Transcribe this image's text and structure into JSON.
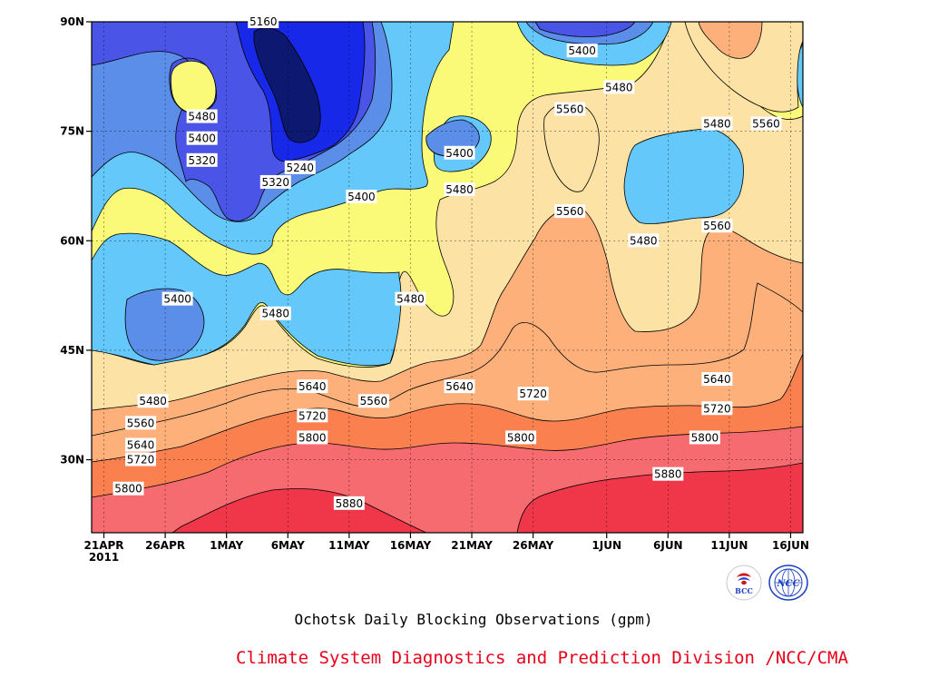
{
  "chart_data": {
    "type": "heatmap",
    "subtype": "filled-contour",
    "title": "Ochotsk Daily Blocking Observations (gpm)",
    "credit": "Climate System Diagnostics and Prediction Division /NCC/CMA",
    "x_tick_labels": [
      "21APR",
      "26APR",
      "1MAY",
      "6MAY",
      "11MAY",
      "16MAY",
      "21MAY",
      "26MAY",
      "1JUN",
      "6JUN",
      "11JUN",
      "16JUN"
    ],
    "x_year_label": "2011",
    "x_range": [
      "2011-04-20",
      "2011-06-17"
    ],
    "y_tick_labels": [
      "30N",
      "45N",
      "60N",
      "75N",
      "90N"
    ],
    "y_range": [
      20,
      90
    ],
    "grid": true,
    "contour_levels": [
      5160,
      5240,
      5320,
      5400,
      5480,
      5560,
      5640,
      5720,
      5800,
      5880
    ],
    "fill_colors": {
      "below_5240": "#0d1870",
      "5240": "#1828e8",
      "5320": "#4a55e8",
      "5400": "#5a8ee8",
      "5480": "#64c8fa",
      "5560": "#fafa78",
      "5640": "#fde2a6",
      "5720": "#fdb07a",
      "5800": "#fb8050",
      "5880": "#f56b70",
      "above_5880": "#f0374a"
    },
    "contour_labels": [
      {
        "text": "5160",
        "date": "2011-05-04",
        "lat": 90
      },
      {
        "text": "5240",
        "date": "2011-05-07",
        "lat": 70
      },
      {
        "text": "5320",
        "date": "2011-05-05",
        "lat": 68
      },
      {
        "text": "5400",
        "date": "2011-05-12",
        "lat": 66
      },
      {
        "text": "5480",
        "date": "2011-04-29",
        "lat": 77
      },
      {
        "text": "5400",
        "date": "2011-04-29",
        "lat": 74
      },
      {
        "text": "5320",
        "date": "2011-04-29",
        "lat": 71
      },
      {
        "text": "5400",
        "date": "2011-04-27",
        "lat": 52
      },
      {
        "text": "5480",
        "date": "2011-05-05",
        "lat": 50
      },
      {
        "text": "5480",
        "date": "2011-05-16",
        "lat": 52
      },
      {
        "text": "5400",
        "date": "2011-05-20",
        "lat": 72
      },
      {
        "text": "5480",
        "date": "2011-05-20",
        "lat": 67
      },
      {
        "text": "5400",
        "date": "2011-05-30",
        "lat": 86
      },
      {
        "text": "5480",
        "date": "2011-06-02",
        "lat": 81
      },
      {
        "text": "5560",
        "date": "2011-05-29",
        "lat": 78
      },
      {
        "text": "5560",
        "date": "2011-05-29",
        "lat": 64
      },
      {
        "text": "5480",
        "date": "2011-06-04",
        "lat": 60
      },
      {
        "text": "5480",
        "date": "2011-06-10",
        "lat": 76
      },
      {
        "text": "5560",
        "date": "2011-06-14",
        "lat": 76
      },
      {
        "text": "5560",
        "date": "2011-06-10",
        "lat": 62
      },
      {
        "text": "5480",
        "date": "2011-04-25",
        "lat": 38
      },
      {
        "text": "5560",
        "date": "2011-04-24",
        "lat": 35
      },
      {
        "text": "5640",
        "date": "2011-04-24",
        "lat": 32
      },
      {
        "text": "5720",
        "date": "2011-04-24",
        "lat": 30
      },
      {
        "text": "5800",
        "date": "2011-04-23",
        "lat": 26
      },
      {
        "text": "5640",
        "date": "2011-05-08",
        "lat": 40
      },
      {
        "text": "5720",
        "date": "2011-05-08",
        "lat": 36
      },
      {
        "text": "5800",
        "date": "2011-05-08",
        "lat": 33
      },
      {
        "text": "5560",
        "date": "2011-05-13",
        "lat": 38
      },
      {
        "text": "5880",
        "date": "2011-05-11",
        "lat": 24
      },
      {
        "text": "5640",
        "date": "2011-05-20",
        "lat": 40
      },
      {
        "text": "5720",
        "date": "2011-05-26",
        "lat": 39
      },
      {
        "text": "5800",
        "date": "2011-05-25",
        "lat": 33
      },
      {
        "text": "5640",
        "date": "2011-06-10",
        "lat": 41
      },
      {
        "text": "5720",
        "date": "2011-06-10",
        "lat": 37
      },
      {
        "text": "5800",
        "date": "2011-06-09",
        "lat": 33
      },
      {
        "text": "5880",
        "date": "2011-06-06",
        "lat": 28
      }
    ]
  },
  "logos": [
    {
      "name": "bcc-logo",
      "text": "BCC"
    },
    {
      "name": "ncc-logo",
      "text": "NCC"
    }
  ]
}
